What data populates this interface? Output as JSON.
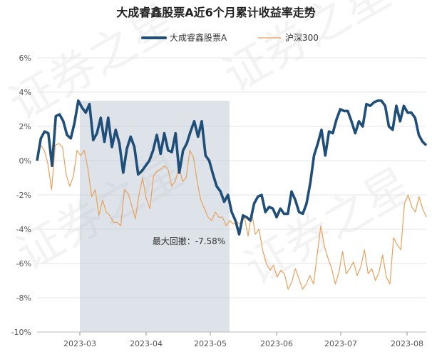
{
  "chart_data": {
    "type": "line",
    "title": "大成睿鑫股票A近6个月累计收益率走势",
    "xlabel": "",
    "ylabel": "",
    "ylim": [
      -10,
      6
    ],
    "yticks": [
      "6%",
      "4%",
      "2%",
      "0%",
      "-2%",
      "-4%",
      "-6%",
      "-8%",
      "-10%"
    ],
    "ytick_values": [
      6,
      4,
      2,
      0,
      -2,
      -4,
      -6,
      -8,
      -10
    ],
    "xticks": [
      {
        "label": "2023-03",
        "date": "2023-03-01"
      },
      {
        "label": "2023-04",
        "date": "2023-04-01"
      },
      {
        "label": "2023-05",
        "date": "2023-05-01"
      },
      {
        "label": "2023-06",
        "date": "2023-06-01"
      },
      {
        "label": "2023-07",
        "date": "2023-07-01"
      },
      {
        "label": "2023-08",
        "date": "2023-08-01"
      }
    ],
    "x_start": "2023-02-09",
    "x_end": "2023-08-10",
    "grid": true,
    "legend_position": "top-center",
    "series": [
      {
        "name": "大成睿鑫股票A",
        "color": "#1f4e79",
        "values": [
          0,
          1.3,
          1.7,
          1.6,
          -0.3,
          2.6,
          2.7,
          2.3,
          1.5,
          1.3,
          2.2,
          3.5,
          3.1,
          2.8,
          3.3,
          1.2,
          1.6,
          2.5,
          1.1,
          2.5,
          0.8,
          1.8,
          1.0,
          -0.7,
          0.7,
          1.4,
          0.8,
          -0.8,
          -0.6,
          -0.3,
          0,
          0.6,
          1.5,
          0.4,
          1.6,
          0.6,
          0.5,
          1.6,
          -0.7,
          0.6,
          1.0,
          1.7,
          2.3,
          1.4,
          2.3,
          0.3,
          0,
          -0.8,
          -1.5,
          -1.8,
          -2.4,
          -2.0,
          -3.0,
          -3.5,
          -4.3,
          -3.2,
          -3.3,
          -3.5,
          -2.5,
          -2.1,
          -2.0,
          -3.0,
          -2.7,
          -2.8,
          -3.3,
          -2.8,
          -3.1,
          -3.1,
          -1.8,
          -2.3,
          -3.0,
          -3.1,
          -2.5,
          -1.3,
          0.3,
          1.0,
          1.8,
          0.3,
          1.7,
          1.6,
          2.4,
          3.0,
          2.9,
          2.9,
          2.3,
          1.6,
          2.3,
          2.0,
          3.3,
          3.2,
          3.4,
          3.5,
          3.5,
          3.2,
          2.0,
          1.8,
          3.2,
          2.3,
          3.2,
          2.8,
          2.8,
          2.5,
          1.5,
          1.1,
          0.9
        ]
      },
      {
        "name": "沪深300",
        "color": "#e8a15c",
        "values": [
          0,
          0.9,
          0.6,
          -0.2,
          -1.7,
          0.9,
          1.0,
          0.8,
          -0.8,
          -1.5,
          -0.9,
          0.6,
          0.3,
          0.6,
          -0.5,
          -2.1,
          -1.7,
          -3.2,
          -2.3,
          -3.0,
          -3.2,
          -3.6,
          -3.6,
          -3.8,
          -1.7,
          -1.9,
          -2.6,
          -3.4,
          -2.0,
          -1.0,
          -2.2,
          -2.8,
          -0.9,
          -0.6,
          -0.5,
          -0.3,
          -0.5,
          -1.5,
          -1.2,
          -0.4,
          -1.2,
          -1.0,
          0.6,
          0.2,
          -1.2,
          -2.3,
          -2.8,
          -3.3,
          -3.5,
          -3.0,
          -3.3,
          -3.3,
          -3.8,
          -3.5,
          -3.7,
          -3.6,
          -3.7,
          -3.3,
          -4.4,
          -3.0,
          -4.3,
          -4.0,
          -5.2,
          -6.0,
          -6.4,
          -6.1,
          -6.8,
          -6.4,
          -6.6,
          -7.5,
          -7.1,
          -6.3,
          -6.9,
          -7.5,
          -7.2,
          -6.7,
          -7.2,
          -5.5,
          -3.8,
          -5.0,
          -5.7,
          -6.3,
          -7.2,
          -6.5,
          -5.3,
          -6.6,
          -6.3,
          -5.9,
          -6.7,
          -6.2,
          -5.2,
          -6.6,
          -6.3,
          -7.0,
          -6.5,
          -5.5,
          -6.8,
          -7.2,
          -4.5,
          -4.9,
          -5.2,
          -2.5,
          -2.0,
          -2.7,
          -3.0,
          -2.1,
          -2.8,
          -3.3
        ]
      }
    ],
    "annotations": [
      {
        "text": "最大回撤：-7.58%",
        "x": "2023-05-06",
        "y": -4.3
      }
    ],
    "drawdown_range": {
      "from": "2023-03-01",
      "to": "2023-05-10"
    }
  },
  "legend": [
    {
      "label": "大成睿鑫股票A"
    },
    {
      "label": "沪深300"
    }
  ],
  "watermark": {
    "text": "证券之星"
  }
}
